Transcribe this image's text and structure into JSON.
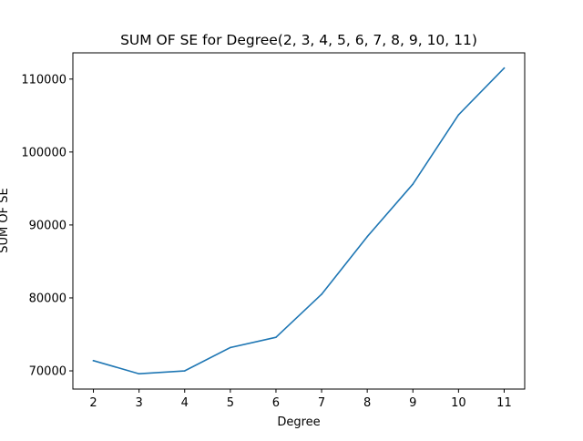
{
  "chart_data": {
    "type": "line",
    "title": "SUM OF SE for Degree(2, 3, 4, 5, 6, 7, 8, 9, 10, 11)",
    "xlabel": "Degree",
    "ylabel": "SUM OF SE",
    "x": [
      2,
      3,
      4,
      5,
      6,
      7,
      8,
      9,
      10,
      11
    ],
    "series": [
      {
        "values": [
          71400,
          69600,
          70000,
          73200,
          74600,
          80500,
          88400,
          95600,
          105100,
          111500
        ],
        "color": "#1f77b4"
      }
    ],
    "xticks": [
      "2",
      "3",
      "4",
      "5",
      "6",
      "7",
      "8",
      "9",
      "10",
      "11"
    ],
    "yticks": [
      "70000",
      "80000",
      "90000",
      "100000",
      "110000"
    ],
    "xlim": [
      1.55,
      11.45
    ],
    "ylim": [
      67505,
      113595
    ],
    "grid": false
  }
}
